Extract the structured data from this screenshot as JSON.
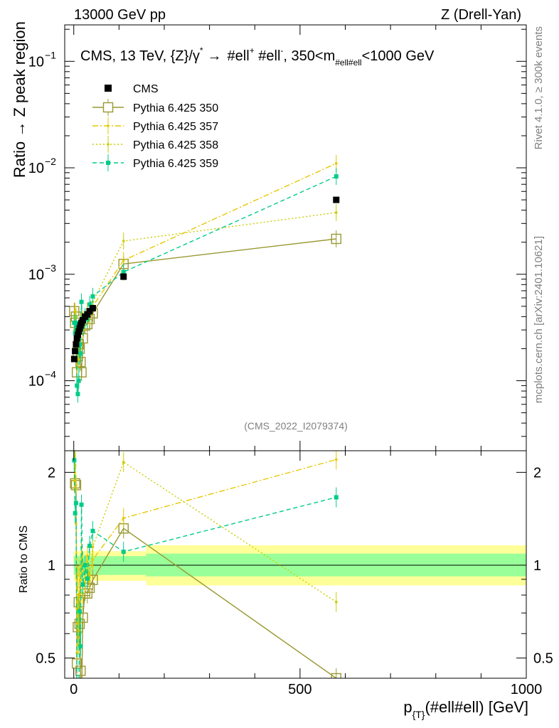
{
  "header": {
    "left": "13000 GeV pp",
    "right": "Z (Drell-Yan)"
  },
  "side": {
    "rivet": "Rivet 4.1.0, ≥ 300k events",
    "mcplots": "mcplots.cern.ch [arXiv:2401.10621]"
  },
  "chart_data": {
    "type": "line",
    "title": "CMS, 13 TeV, {Z}/γ* → #ell⁺ #ell⁻, 350<m_{#ell#ell}<1000 GeV",
    "title_parts": {
      "a": "CMS, 13 TeV, {Z}/",
      "gamma": "γ",
      "star": "*",
      "arrow": "→",
      "b": "#ell",
      "plus": "+",
      "c": " #ell",
      "minus": "-",
      "d": ", 350<m",
      "sub": "#ell#ell",
      "e": "<1000 GeV"
    },
    "watermark": "(CMS_2022_I2079374)",
    "ylabel": "Ratio → Z peak region",
    "ylabel_ratio": "Ratio to CMS",
    "xlabel": "p_{T}(#ell#ell) [GeV]",
    "xlabel_parts": {
      "p": "p",
      "sub": "{T}",
      "rest": "(#ell#ell) [GeV]"
    },
    "xlim": [
      -20,
      1000
    ],
    "ylim_main": [
      2.2e-05,
      0.22
    ],
    "ylim_ratio": [
      0.43,
      2.35
    ],
    "x_ticks": [
      0,
      500,
      1000
    ],
    "x_tick_labels": [
      "0",
      "500",
      "1000"
    ],
    "y_ticks_main": [
      {
        "v": 0.0001,
        "base": "10",
        "exp": "−4"
      },
      {
        "v": 0.001,
        "base": "10",
        "exp": "−3"
      },
      {
        "v": 0.01,
        "base": "10",
        "exp": "−2"
      },
      {
        "v": 0.1,
        "base": "10",
        "exp": "−1"
      }
    ],
    "y_ticks_ratio": [
      0.5,
      1,
      2
    ],
    "y_tick_labels_ratio": [
      "0.5",
      "1",
      "2"
    ],
    "legend": [
      "CMS",
      "Pythia 6.425 350",
      "Pythia 6.425 357",
      "Pythia 6.425 358",
      "Pythia 6.425 359"
    ],
    "series": [
      {
        "name": "CMS",
        "color": "#000000",
        "style": "data",
        "x": [
          1,
          3,
          5,
          7,
          9,
          11,
          13,
          15,
          17,
          20,
          25,
          30,
          35,
          42,
          110,
          580
        ],
        "y": [
          0.00016,
          0.00019,
          0.00022,
          0.00025,
          0.00027,
          0.00029,
          0.00031,
          0.00033,
          0.00035,
          0.00037,
          0.0004,
          0.00042,
          0.00045,
          0.00048,
          0.00095,
          0.005
        ]
      },
      {
        "name": "Pythia 6.425 350",
        "color": "#999933",
        "style": "solid",
        "x": [
          1,
          3,
          5,
          7,
          9,
          11,
          13,
          15,
          17,
          20,
          25,
          30,
          35,
          42,
          110,
          580
        ],
        "y": [
          0.00045,
          0.00035,
          0.0004,
          0.00012,
          0.00017,
          0.00022,
          0.0002,
          0.00015,
          0.00012,
          0.00025,
          0.00033,
          0.00034,
          0.00038,
          0.00043,
          0.00125,
          0.00215
        ]
      },
      {
        "name": "Pythia 6.425 357",
        "color": "#e6c800",
        "style": "dashdot",
        "x": [
          1,
          3,
          5,
          7,
          9,
          11,
          13,
          15,
          17,
          20,
          25,
          30,
          35,
          42,
          110,
          580
        ],
        "y": [
          0.0003,
          0.00045,
          0.0004,
          0.00013,
          0.00025,
          0.00018,
          0.0003,
          0.00022,
          0.0004,
          0.00038,
          0.00035,
          0.00045,
          0.0004,
          0.0005,
          0.00135,
          0.011
        ]
      },
      {
        "name": "Pythia 6.425 358",
        "color": "#cccc00",
        "style": "dotted",
        "x": [
          1,
          3,
          5,
          7,
          9,
          11,
          13,
          15,
          17,
          20,
          25,
          30,
          35,
          42,
          110,
          580
        ],
        "y": [
          0.00035,
          0.0004,
          0.0003,
          0.00018,
          0.0002,
          0.00016,
          0.00025,
          0.0002,
          0.00035,
          0.0003,
          0.00038,
          0.0004,
          0.00042,
          0.00055,
          0.00205,
          0.0038
        ]
      },
      {
        "name": "Pythia 6.425 359",
        "color": "#00cc88",
        "style": "dashed",
        "x": [
          1,
          3,
          5,
          7,
          9,
          11,
          13,
          15,
          17,
          20,
          25,
          30,
          35,
          42,
          110,
          580
        ],
        "y": [
          0.00035,
          0.00028,
          0.00035,
          9e-05,
          7.5e-05,
          0.0001,
          0.00022,
          0.00018,
          0.00055,
          0.00032,
          0.0004,
          0.00038,
          0.00052,
          0.00062,
          0.00105,
          0.0083
        ]
      }
    ],
    "bands": [
      {
        "x0": 0,
        "x1": 160,
        "stat_lo": 0.93,
        "stat_hi": 1.07,
        "tot_lo": 0.89,
        "tot_hi": 1.11
      },
      {
        "x0": 160,
        "x1": 1000,
        "stat_lo": 0.92,
        "stat_hi": 1.09,
        "tot_lo": 0.86,
        "tot_hi": 1.16
      }
    ],
    "colors": {
      "stat_band": "#99ff99",
      "total_band": "#ffff99"
    }
  }
}
